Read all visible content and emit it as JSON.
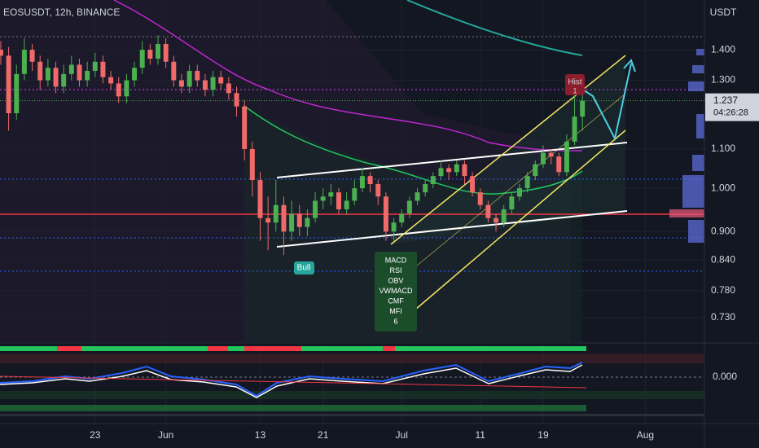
{
  "header": {
    "title": "EOSUSDT, 12h, BINANCE"
  },
  "chart_data": {
    "type": "candlestick",
    "unit": "USDT",
    "log": true,
    "ylim": [
      0.688,
      1.58
    ],
    "yticks": [
      {
        "value": 1.4,
        "label": "1.400"
      },
      {
        "value": 1.3,
        "label": "1.300"
      },
      {
        "value": 1.1,
        "label": "1.100"
      },
      {
        "value": 1.0,
        "label": "1.000"
      },
      {
        "value": 0.9,
        "label": "0.900"
      },
      {
        "value": 0.84,
        "label": "0.840"
      },
      {
        "value": 0.78,
        "label": "0.780"
      },
      {
        "value": 0.73,
        "label": "0.730"
      }
    ],
    "xlim": [
      -12.1,
      77
    ],
    "xticks": [
      {
        "value": 0,
        "label": "23"
      },
      {
        "value": 9,
        "label": "Jun"
      },
      {
        "value": 21,
        "label": "13"
      },
      {
        "value": 29,
        "label": "21"
      },
      {
        "value": 39,
        "label": "Jul"
      },
      {
        "value": 49,
        "label": "11"
      },
      {
        "value": 57,
        "label": "19"
      },
      {
        "value": 70,
        "label": "Aug"
      }
    ],
    "up_color": "#4caf50",
    "down_color": "#f06a6a",
    "x": [
      -12,
      -11,
      -10,
      -9,
      -8,
      -7,
      -6,
      -5,
      -4,
      -3,
      -2,
      -1,
      0,
      1,
      2,
      3,
      4,
      5,
      6,
      7,
      8,
      9,
      10,
      11,
      12,
      13,
      14,
      15,
      16,
      17,
      18,
      19,
      20,
      21,
      22,
      23,
      24,
      25,
      26,
      27,
      28,
      29,
      30,
      31,
      32,
      33,
      34,
      35,
      36,
      37,
      38,
      39,
      40,
      41,
      42,
      43,
      44,
      45,
      46,
      47,
      48,
      49,
      50,
      51,
      52,
      53,
      54,
      55,
      56,
      57,
      58,
      59,
      60,
      61,
      62
    ],
    "open": [
      1.4,
      1.38,
      1.2,
      1.32,
      1.4,
      1.36,
      1.3,
      1.34,
      1.28,
      1.32,
      1.35,
      1.3,
      1.33,
      1.36,
      1.31,
      1.29,
      1.25,
      1.3,
      1.34,
      1.4,
      1.37,
      1.42,
      1.36,
      1.3,
      1.28,
      1.33,
      1.3,
      1.27,
      1.31,
      1.29,
      1.26,
      1.22,
      1.1,
      1.02,
      0.93,
      0.92,
      0.96,
      0.9,
      0.94,
      0.91,
      0.93,
      0.97,
      0.98,
      0.99,
      0.95,
      0.97,
      1.0,
      1.03,
      1.01,
      0.98,
      0.9,
      0.92,
      0.94,
      0.97,
      0.99,
      1.01,
      1.03,
      1.05,
      1.04,
      1.06,
      1.03,
      0.99,
      0.96,
      0.93,
      0.92,
      0.95,
      0.98,
      1.0,
      1.03,
      1.06,
      1.09,
      1.08,
      1.04,
      1.12,
      1.19
    ],
    "high": [
      1.43,
      1.41,
      1.35,
      1.44,
      1.42,
      1.38,
      1.37,
      1.36,
      1.35,
      1.38,
      1.37,
      1.36,
      1.39,
      1.38,
      1.33,
      1.31,
      1.32,
      1.36,
      1.43,
      1.42,
      1.45,
      1.44,
      1.38,
      1.32,
      1.35,
      1.35,
      1.32,
      1.33,
      1.33,
      1.31,
      1.28,
      1.24,
      1.12,
      1.04,
      0.98,
      1.02,
      0.98,
      0.97,
      0.96,
      0.95,
      0.99,
      1.0,
      1.01,
      1.0,
      0.99,
      1.02,
      1.05,
      1.04,
      1.02,
      0.99,
      0.93,
      0.95,
      0.98,
      1.0,
      1.02,
      1.04,
      1.07,
      1.06,
      1.07,
      1.07,
      1.04,
      1.0,
      0.97,
      0.94,
      0.96,
      0.99,
      1.01,
      1.04,
      1.07,
      1.11,
      1.1,
      1.09,
      1.14,
      1.26,
      1.26
    ],
    "low": [
      1.35,
      1.15,
      1.18,
      1.3,
      1.33,
      1.27,
      1.28,
      1.26,
      1.26,
      1.3,
      1.28,
      1.28,
      1.31,
      1.29,
      1.27,
      1.23,
      1.23,
      1.28,
      1.32,
      1.35,
      1.35,
      1.34,
      1.28,
      1.26,
      1.26,
      1.28,
      1.25,
      1.25,
      1.27,
      1.24,
      1.19,
      1.07,
      0.98,
      0.88,
      0.86,
      0.9,
      0.85,
      0.88,
      0.89,
      0.89,
      0.92,
      0.95,
      0.96,
      0.94,
      0.94,
      0.96,
      0.99,
      0.99,
      0.96,
      0.88,
      0.88,
      0.91,
      0.93,
      0.96,
      0.98,
      1.0,
      1.02,
      1.02,
      1.03,
      1.01,
      0.98,
      0.95,
      0.92,
      0.9,
      0.91,
      0.94,
      0.97,
      0.99,
      1.02,
      1.05,
      1.06,
      1.03,
      1.03,
      1.11,
      1.15
    ],
    "close": [
      1.38,
      1.2,
      1.32,
      1.4,
      1.36,
      1.3,
      1.34,
      1.28,
      1.32,
      1.35,
      1.3,
      1.33,
      1.36,
      1.31,
      1.29,
      1.25,
      1.3,
      1.34,
      1.4,
      1.37,
      1.42,
      1.36,
      1.3,
      1.28,
      1.33,
      1.3,
      1.27,
      1.31,
      1.29,
      1.26,
      1.22,
      1.1,
      1.02,
      0.93,
      0.92,
      0.96,
      0.9,
      0.94,
      0.91,
      0.93,
      0.97,
      0.98,
      0.99,
      0.95,
      0.97,
      1.0,
      1.03,
      1.01,
      0.98,
      0.9,
      0.92,
      0.94,
      0.97,
      0.99,
      1.01,
      1.03,
      1.05,
      1.04,
      1.06,
      1.03,
      0.99,
      0.96,
      0.93,
      0.92,
      0.95,
      0.98,
      1.0,
      1.03,
      1.06,
      1.09,
      1.08,
      1.04,
      1.12,
      1.19,
      1.237
    ],
    "last_price": {
      "value": 1.237,
      "label": "1.237",
      "countdown": "04:26:28"
    },
    "annotations": {
      "hist": {
        "title": "Hist",
        "count": "1"
      },
      "bull": "Bull",
      "divergence": [
        "MACD",
        "RSI",
        "OBV",
        "VWMACD",
        "CMF",
        "MFI",
        "6"
      ]
    },
    "oscillator": {
      "zero_label": "0.000"
    }
  }
}
